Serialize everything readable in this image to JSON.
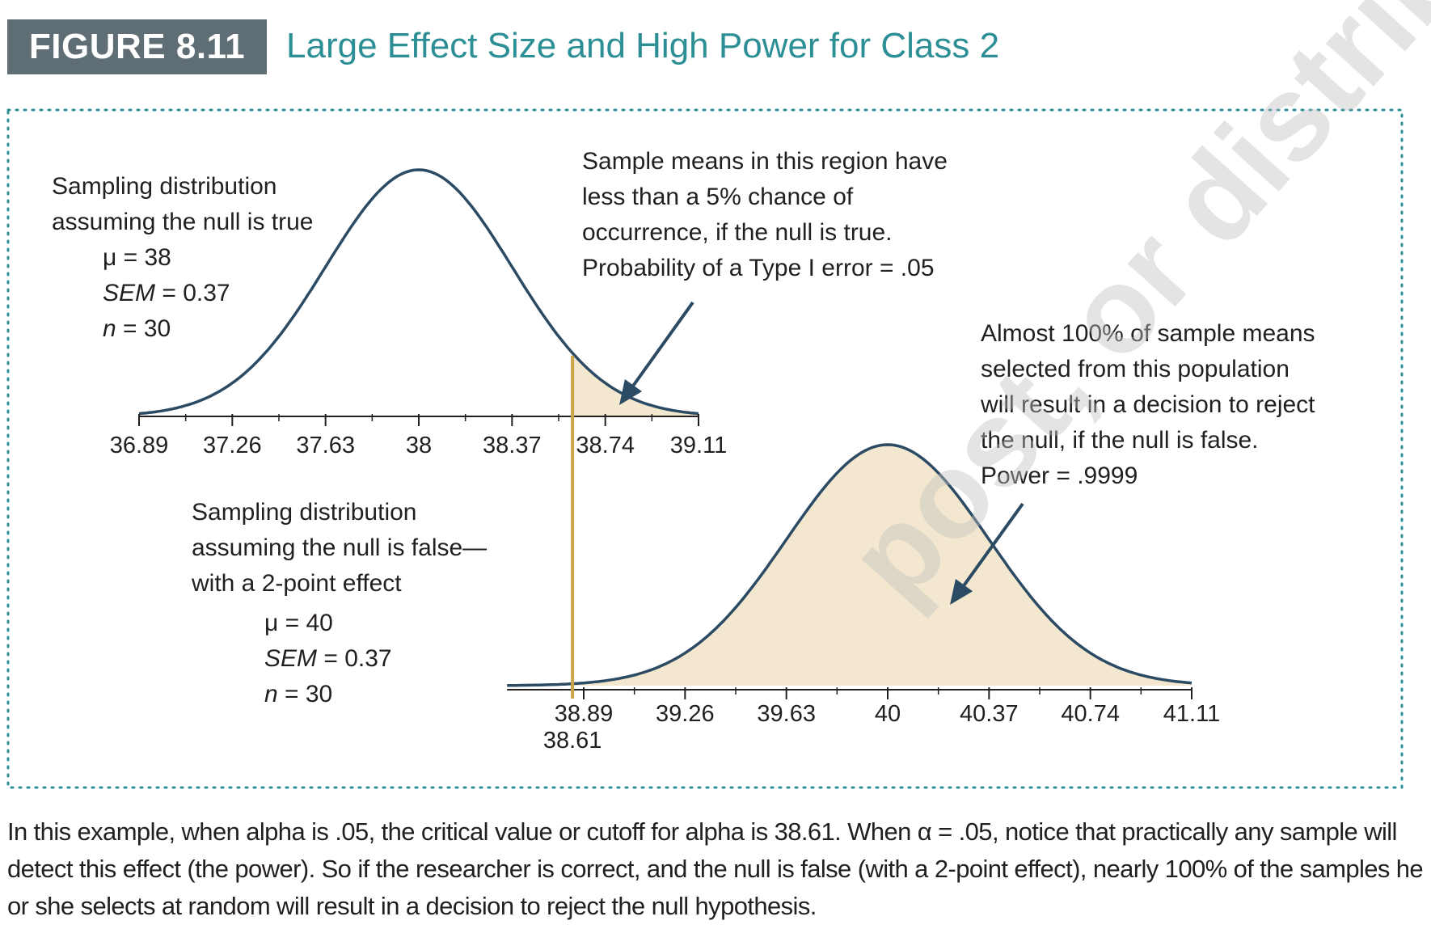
{
  "figure": {
    "label": "FIGURE 8.11",
    "title": "Large Effect Size and High Power for Class 2"
  },
  "colors": {
    "badge": "#5f6d74",
    "title": "#2d8f96",
    "curve": "#2b4a63",
    "fill": "#f3e8cf",
    "cutoff": "#c9a548",
    "frame": "#2d8f96"
  },
  "chart_data": {
    "type": "area",
    "curves": [
      {
        "id": "null",
        "mean": 38,
        "sem": 0.37,
        "n": 30,
        "ticks": [
          36.89,
          37.26,
          37.63,
          38,
          38.37,
          38.74,
          39.11
        ],
        "tick_labels": [
          "36.89",
          "37.26",
          "37.63",
          "38",
          "38.37",
          "38.74",
          "39.11"
        ],
        "shaded_from": 38.61,
        "lines": [
          "Sampling distribution",
          "assuming the null is true"
        ],
        "params": [
          {
            "sym": "μ",
            "italic": false,
            "value": "= 38"
          },
          {
            "sym": "SEM",
            "italic": true,
            "value": "= 0.37"
          },
          {
            "sym": "n",
            "italic": true,
            "value": "= 30"
          }
        ]
      },
      {
        "id": "alt",
        "mean": 40,
        "sem": 0.37,
        "n": 30,
        "ticks": [
          38.89,
          39.26,
          39.63,
          40,
          40.37,
          40.74,
          41.11
        ],
        "tick_labels": [
          "38.89",
          "39.26",
          "39.63",
          "40",
          "40.37",
          "40.74",
          "41.11"
        ],
        "shaded_from": 38.61,
        "lines": [
          "Sampling distribution",
          "assuming the null is false—",
          "with a 2-point effect"
        ],
        "params": [
          {
            "sym": "μ",
            "italic": false,
            "value": "= 40"
          },
          {
            "sym": "SEM",
            "italic": true,
            "value": "= 0.37"
          },
          {
            "sym": "n",
            "italic": true,
            "value": "= 30"
          }
        ]
      }
    ],
    "cutoff": {
      "value": 38.61,
      "label": "38.61"
    },
    "annotations": {
      "type1": [
        "Sample means in this region have",
        "less than a 5% chance of",
        "occurrence, if the null is true.",
        "Probability of a Type I error = .05"
      ],
      "power": [
        "Almost 100% of sample means",
        "selected from this population",
        "will result in a decision to reject",
        "the null, if the null is false.",
        "Power = .9999"
      ]
    }
  },
  "caption": "In this example, when alpha is .05, the critical value or cutoff for alpha is 38.61. When α = .05, notice that practically any sample will detect this effect (the power). So if the researcher is correct, and the null is false (with a 2-point effect), nearly 100% of the samples he or she selects at random will result in a decision to reject the null hypothesis.",
  "watermark": "post, or distribut"
}
